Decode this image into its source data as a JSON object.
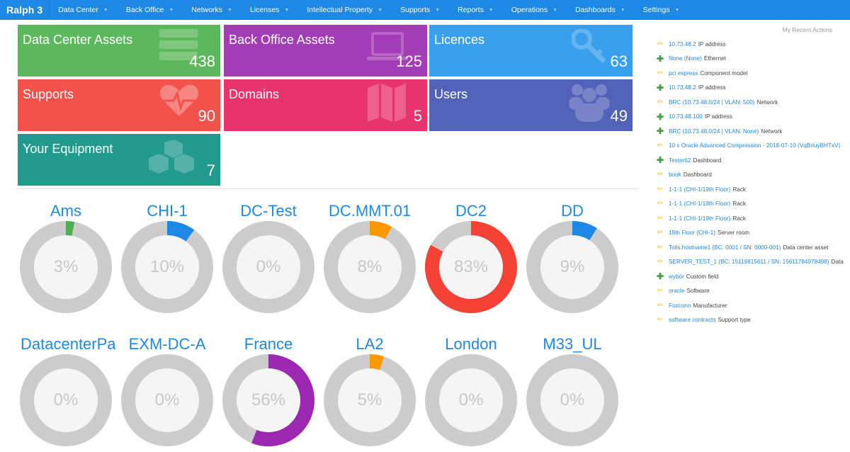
{
  "navbar": {
    "brand": "Ralph 3",
    "items": [
      {
        "label": "Data Center"
      },
      {
        "label": "Back Office"
      },
      {
        "label": "Networks"
      },
      {
        "label": "Licenses"
      },
      {
        "label": "Intellectual Property"
      },
      {
        "label": "Supports"
      },
      {
        "label": "Reports"
      },
      {
        "label": "Operations"
      },
      {
        "label": "Dashboards"
      },
      {
        "label": "Settings"
      }
    ]
  },
  "tiles": [
    {
      "title": "Data Center Assets",
      "count": "438",
      "icon": "server-icon",
      "color": "#5cb85c"
    },
    {
      "title": "Back Office Assets",
      "count": "125",
      "icon": "laptop-icon",
      "color": "#a33db6"
    },
    {
      "title": "Licences",
      "count": "63",
      "icon": "key-icon",
      "color": "#3aa0ee"
    },
    {
      "title": "Supports",
      "count": "90",
      "icon": "heartbeat-icon",
      "color": "#f2524a"
    },
    {
      "title": "Domains",
      "count": "5",
      "icon": "map-icon",
      "color": "#e8346c"
    },
    {
      "title": "Users",
      "count": "49",
      "icon": "users-icon",
      "color": "#5262b8"
    },
    {
      "title": "Your Equipment",
      "count": "7",
      "icon": "cubes-icon",
      "color": "#229b8e"
    }
  ],
  "donuts": [
    {
      "label": "Ams",
      "percent": 3,
      "text": "3%",
      "color": "#4caf50"
    },
    {
      "label": "CHI-1",
      "percent": 10,
      "text": "10%",
      "color": "#1e88e5"
    },
    {
      "label": "DC-Test",
      "percent": 0,
      "text": "0%",
      "color": "#cccccc"
    },
    {
      "label": "DC.MMT.01",
      "percent": 8,
      "text": "8%",
      "color": "#ff9800"
    },
    {
      "label": "DC2",
      "percent": 83,
      "text": "83%",
      "color": "#f44336"
    },
    {
      "label": "DD",
      "percent": 9,
      "text": "9%",
      "color": "#1e88e5"
    },
    {
      "label": "DatacenterPa",
      "percent": 0,
      "text": "0%",
      "color": "#cccccc"
    },
    {
      "label": "EXM-DC-A",
      "percent": 0,
      "text": "0%",
      "color": "#cccccc"
    },
    {
      "label": "France",
      "percent": 56,
      "text": "56%",
      "color": "#9c27b0"
    },
    {
      "label": "LA2",
      "percent": 5,
      "text": "5%",
      "color": "#ff9800"
    },
    {
      "label": "London",
      "percent": 0,
      "text": "0%",
      "color": "#cccccc"
    },
    {
      "label": "M33_UL",
      "percent": 0,
      "text": "0%",
      "color": "#cccccc"
    }
  ],
  "recent_actions": {
    "title": "My Recent Actions",
    "items": [
      {
        "action": "edit",
        "link": "10.73.48.2",
        "type": "IP address"
      },
      {
        "action": "add",
        "link": "None (None)",
        "type": "Ethernet"
      },
      {
        "action": "edit",
        "link": "pci express",
        "type": "Component model"
      },
      {
        "action": "add",
        "link": "10.73.48.2",
        "type": "IP address"
      },
      {
        "action": "edit",
        "link": "BRC (10.73.48.0/24 | VLAN: 500)",
        "type": "Network"
      },
      {
        "action": "add",
        "link": "10.73.48.100",
        "type": "IP address"
      },
      {
        "action": "add",
        "link": "BRC (10.73.48.0/24 | VLAN: None)",
        "type": "Network"
      },
      {
        "action": "edit",
        "link": "10 x Oracle Advanced Compression - 2018-07-10 (VqBrluyBHTxV)",
        "type": ""
      },
      {
        "action": "add",
        "link": "Tester62",
        "type": "Dashboard"
      },
      {
        "action": "edit",
        "link": "book",
        "type": "Dashboard"
      },
      {
        "action": "edit",
        "link": "1-1-1 (CHI-1/19th Floor)",
        "type": "Rack"
      },
      {
        "action": "edit",
        "link": "1-1-1 (CHI-1/19th Floor)",
        "type": "Rack"
      },
      {
        "action": "edit",
        "link": "1-1-1 (CHI-1/19th Floor)",
        "type": "Rack"
      },
      {
        "action": "edit",
        "link": "19th Floor (CHI-1)",
        "type": "Server room"
      },
      {
        "action": "edit",
        "link": "Tolis.hostname1 (BC: 0001 / SN: 0000-001)",
        "type": "Data center asset"
      },
      {
        "action": "edit",
        "link": "SERVER_TEST_1 (BC: 15119815611 / SN: 15611784978498)",
        "type": "Data"
      },
      {
        "action": "add",
        "link": "wybór",
        "type": "Custom field"
      },
      {
        "action": "edit",
        "link": "oracle",
        "type": "Software"
      },
      {
        "action": "edit",
        "link": "Foxconn",
        "type": "Manufacturer"
      },
      {
        "action": "edit",
        "link": "software contracts",
        "type": "Support type"
      }
    ]
  },
  "icons": {
    "edit": "✏",
    "add": "✚",
    "caret": "▼"
  }
}
